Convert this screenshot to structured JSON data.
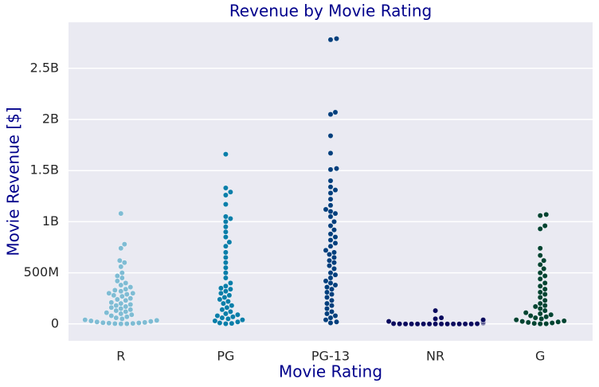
{
  "chart_data": {
    "type": "swarm",
    "title": "Revenue by Movie Rating",
    "xlabel": "Movie Rating",
    "ylabel": "Movie Revenue [$]",
    "categories": [
      "R",
      "PG",
      "PG-13",
      "NR",
      "G"
    ],
    "colors": [
      "#7fbcd4",
      "#0a7ea9",
      "#023f7d",
      "#0a0a5e",
      "#014432"
    ],
    "values": [
      [
        1080000000,
        780000000,
        740000000,
        620000000,
        600000000,
        560000000,
        500000000,
        470000000,
        450000000,
        420000000,
        400000000,
        380000000,
        360000000,
        340000000,
        330000000,
        320000000,
        300000000,
        300000000,
        290000000,
        280000000,
        270000000,
        250000000,
        240000000,
        230000000,
        210000000,
        200000000,
        190000000,
        180000000,
        170000000,
        160000000,
        150000000,
        140000000,
        130000000,
        120000000,
        110000000,
        100000000,
        90000000,
        80000000,
        70000000,
        60000000,
        50000000,
        40000000,
        35000000,
        30000000,
        25000000,
        20000000,
        15000000,
        12000000,
        10000000,
        8000000,
        5000000,
        3000000,
        2000000,
        1000000
      ],
      [
        1660000000,
        1330000000,
        1290000000,
        1260000000,
        1170000000,
        1050000000,
        1030000000,
        1000000000,
        950000000,
        900000000,
        850000000,
        800000000,
        760000000,
        700000000,
        650000000,
        600000000,
        550000000,
        500000000,
        450000000,
        400000000,
        370000000,
        350000000,
        340000000,
        320000000,
        300000000,
        280000000,
        260000000,
        240000000,
        220000000,
        200000000,
        180000000,
        160000000,
        140000000,
        120000000,
        100000000,
        90000000,
        80000000,
        70000000,
        60000000,
        50000000,
        40000000,
        30000000,
        20000000,
        10000000,
        5000000,
        2000000
      ],
      [
        2790000000,
        2780000000,
        2070000000,
        2050000000,
        1840000000,
        1670000000,
        1520000000,
        1510000000,
        1400000000,
        1340000000,
        1310000000,
        1280000000,
        1220000000,
        1160000000,
        1120000000,
        1100000000,
        1080000000,
        1050000000,
        1000000000,
        960000000,
        920000000,
        880000000,
        850000000,
        820000000,
        790000000,
        760000000,
        720000000,
        700000000,
        680000000,
        650000000,
        620000000,
        600000000,
        570000000,
        540000000,
        500000000,
        480000000,
        450000000,
        420000000,
        400000000,
        380000000,
        360000000,
        340000000,
        310000000,
        290000000,
        260000000,
        230000000,
        200000000,
        180000000,
        150000000,
        120000000,
        100000000,
        80000000,
        60000000,
        40000000,
        20000000,
        10000000
      ],
      [
        130000000,
        60000000,
        50000000,
        40000000,
        35000000,
        30000000,
        25000000,
        20000000,
        15000000,
        10000000,
        8000000,
        5000000,
        3000000,
        2000000,
        1000000,
        0,
        0,
        0,
        0,
        0,
        0,
        0,
        0,
        0,
        0,
        0,
        0
      ],
      [
        1070000000,
        1060000000,
        960000000,
        930000000,
        740000000,
        670000000,
        620000000,
        580000000,
        540000000,
        500000000,
        470000000,
        440000000,
        400000000,
        370000000,
        340000000,
        310000000,
        290000000,
        260000000,
        230000000,
        200000000,
        180000000,
        170000000,
        150000000,
        130000000,
        110000000,
        100000000,
        90000000,
        80000000,
        70000000,
        60000000,
        50000000,
        40000000,
        30000000,
        25000000,
        20000000,
        15000000,
        10000000,
        5000000,
        2000000,
        1000000
      ]
    ],
    "ylim": [
      -165000000,
      2950000000
    ],
    "yticks": [
      0,
      {
        "value": 500000000,
        "label": "500M"
      },
      {
        "value": 1000000000,
        "label": "1B"
      },
      {
        "value": 1500000000,
        "label": "1.5B"
      },
      {
        "value": 2000000000,
        "label": "2B"
      },
      {
        "value": 2500000000,
        "label": "2.5B"
      }
    ],
    "grid": true
  }
}
